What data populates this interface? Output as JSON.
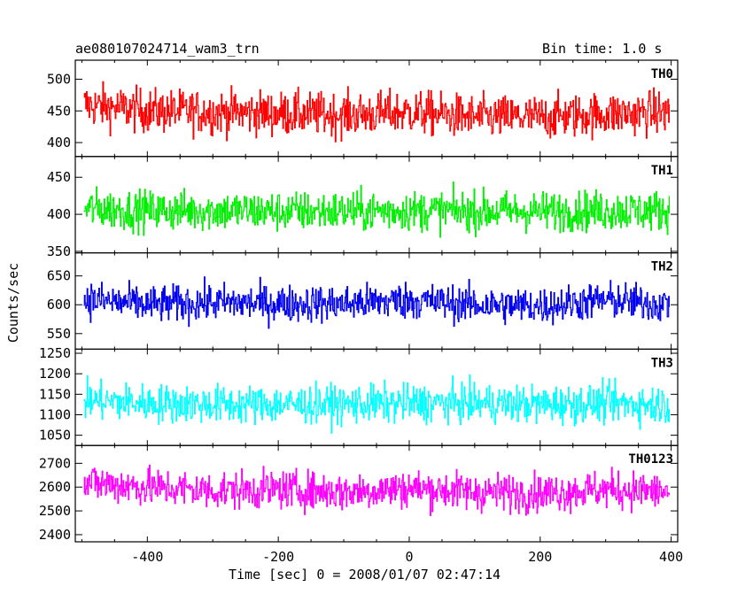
{
  "header": {
    "title": "ae080107024714_wam3_trn",
    "bin_time": "Bin time: 1.0 s"
  },
  "chart_data": {
    "type": "line",
    "title": "ae080107024714_wam3_trn",
    "subtitle": "Bin time: 1.0 s",
    "xlabel": "Time [sec] 0 = 2008/01/07 02:47:14",
    "ylabel": "Counts/sec",
    "xlim": [
      -510,
      410
    ],
    "xticks": [
      -400,
      -200,
      0,
      200,
      400
    ],
    "grid": false,
    "panels": [
      {
        "name": "TH0",
        "color": "#ff0000",
        "ylim": [
          378,
          530
        ],
        "yticks": [
          400,
          450,
          500
        ],
        "mean": 448,
        "spread": 28,
        "x": [
          -500,
          -400,
          -300,
          -200,
          -100,
          0,
          100,
          200,
          300,
          400
        ],
        "values": [
          460,
          450,
          448,
          446,
          444,
          448,
          440,
          440,
          445,
          448
        ]
      },
      {
        "name": "TH1",
        "color": "#00ee00",
        "ylim": [
          348,
          478
        ],
        "yticks": [
          350,
          400,
          450
        ],
        "mean": 405,
        "spread": 22,
        "x": [
          -500,
          -400,
          -300,
          -200,
          -100,
          0,
          100,
          200,
          300,
          400
        ],
        "values": [
          408,
          405,
          405,
          404,
          404,
          405,
          404,
          404,
          405,
          405
        ]
      },
      {
        "name": "TH2",
        "color": "#0000ee",
        "ylim": [
          523,
          690
        ],
        "yticks": [
          550,
          600,
          650
        ],
        "mean": 605,
        "spread": 26,
        "x": [
          -500,
          -400,
          -300,
          -200,
          -100,
          0,
          100,
          200,
          300,
          400
        ],
        "values": [
          610,
          600,
          604,
          602,
          602,
          608,
          600,
          598,
          608,
          600
        ]
      },
      {
        "name": "TH3",
        "color": "#00ffff",
        "ylim": [
          1025,
          1260
        ],
        "yticks": [
          1050,
          1100,
          1150,
          1200,
          1250
        ],
        "mean": 1128,
        "spread": 38,
        "x": [
          -500,
          -400,
          -300,
          -200,
          -100,
          0,
          100,
          200,
          300,
          400
        ],
        "values": [
          1135,
          1128,
          1125,
          1125,
          1125,
          1128,
          1128,
          1125,
          1128,
          1125
        ]
      },
      {
        "name": "TH0123",
        "color": "#ff00ff",
        "ylim": [
          2370,
          2775
        ],
        "yticks": [
          2400,
          2500,
          2600,
          2700
        ],
        "mean": 2590,
        "spread": 65,
        "x": [
          -500,
          -400,
          -300,
          -200,
          -100,
          0,
          100,
          200,
          300,
          400
        ],
        "values": [
          2620,
          2600,
          2585,
          2590,
          2580,
          2595,
          2580,
          2575,
          2590,
          2580
        ]
      }
    ]
  }
}
